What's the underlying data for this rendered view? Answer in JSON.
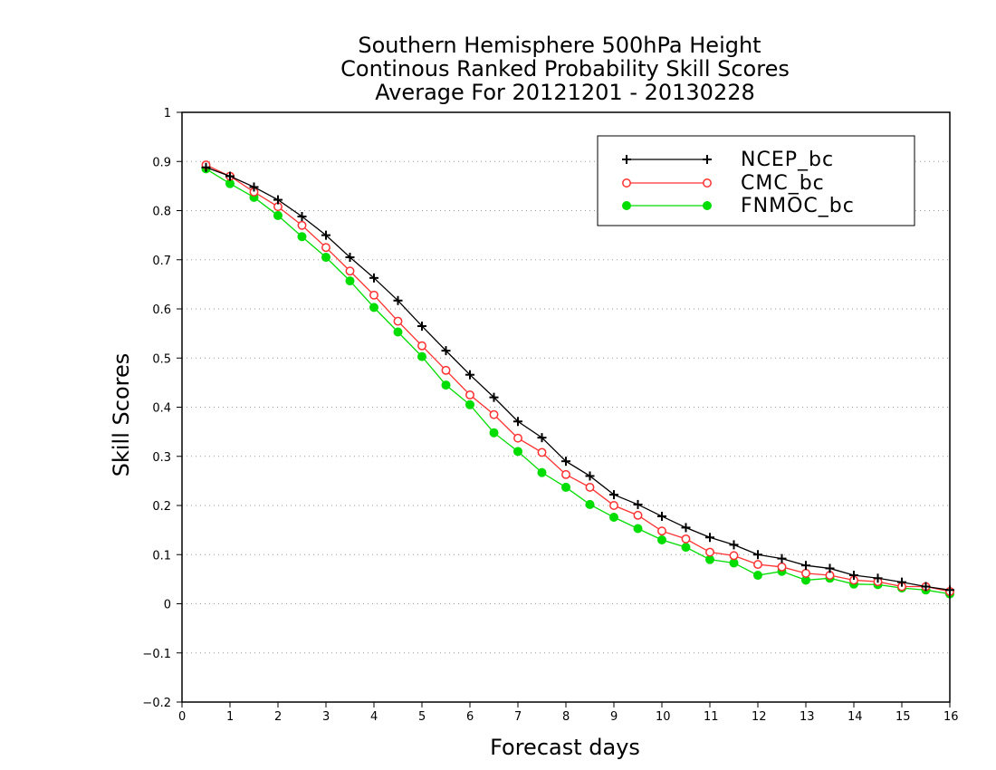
{
  "chart_data": {
    "type": "line",
    "title_lines": [
      "Southern Hemisphere 500hPa Height",
      "Continous Ranked Probability Skill Scores",
      "Average For 20121201 - 20130228"
    ],
    "xlabel": "Forecast days",
    "ylabel": "Skill Scores",
    "xlim": [
      0,
      16
    ],
    "ylim": [
      -0.2,
      1
    ],
    "x_ticks": [
      "0",
      "1",
      "2",
      "3",
      "4",
      "5",
      "6",
      "7",
      "8",
      "9",
      "10",
      "11",
      "12",
      "13",
      "14",
      "15",
      "16"
    ],
    "y_ticks": [
      "−0.2",
      "−0.1",
      "0",
      "0.1",
      "0.2",
      "0.3",
      "0.4",
      "0.5",
      "0.6",
      "0.7",
      "0.8",
      "0.9",
      "1"
    ],
    "grid": "horizontal dotted",
    "legend_position": "top-right",
    "x": [
      0.5,
      1,
      1.5,
      2,
      2.5,
      3,
      3.5,
      4,
      4.5,
      5,
      5.5,
      6,
      6.5,
      7,
      7.5,
      8,
      8.5,
      9,
      9.5,
      10,
      10.5,
      11,
      11.5,
      12,
      12.5,
      13,
      13.5,
      14,
      14.5,
      15,
      15.5,
      16
    ],
    "series": [
      {
        "name": "NCEP_bc",
        "color": "#000000",
        "marker": "plus",
        "values": [
          0.888,
          0.87,
          0.848,
          0.822,
          0.788,
          0.75,
          0.705,
          0.663,
          0.617,
          0.565,
          0.515,
          0.466,
          0.42,
          0.371,
          0.338,
          0.29,
          0.26,
          0.222,
          0.202,
          0.178,
          0.155,
          0.135,
          0.12,
          0.1,
          0.092,
          0.078,
          0.072,
          0.058,
          0.052,
          0.044,
          0.035,
          0.028
        ]
      },
      {
        "name": "CMC_bc",
        "color": "#ff3030",
        "marker": "open-circle",
        "values": [
          0.893,
          0.87,
          0.838,
          0.808,
          0.77,
          0.725,
          0.677,
          0.628,
          0.575,
          0.525,
          0.475,
          0.425,
          0.385,
          0.337,
          0.308,
          0.263,
          0.237,
          0.2,
          0.18,
          0.148,
          0.132,
          0.105,
          0.098,
          0.08,
          0.075,
          0.062,
          0.058,
          0.048,
          0.045,
          0.035,
          0.035,
          0.025
        ]
      },
      {
        "name": "FNMOC_bc",
        "color": "#00dd00",
        "marker": "filled-circle",
        "values": [
          0.885,
          0.855,
          0.827,
          0.79,
          0.747,
          0.705,
          0.657,
          0.603,
          0.553,
          0.503,
          0.445,
          0.405,
          0.348,
          0.31,
          0.267,
          0.237,
          0.202,
          0.176,
          0.153,
          0.13,
          0.115,
          0.09,
          0.083,
          0.058,
          0.066,
          0.048,
          0.052,
          0.04,
          0.039,
          0.032,
          0.028,
          0.02
        ]
      }
    ]
  }
}
